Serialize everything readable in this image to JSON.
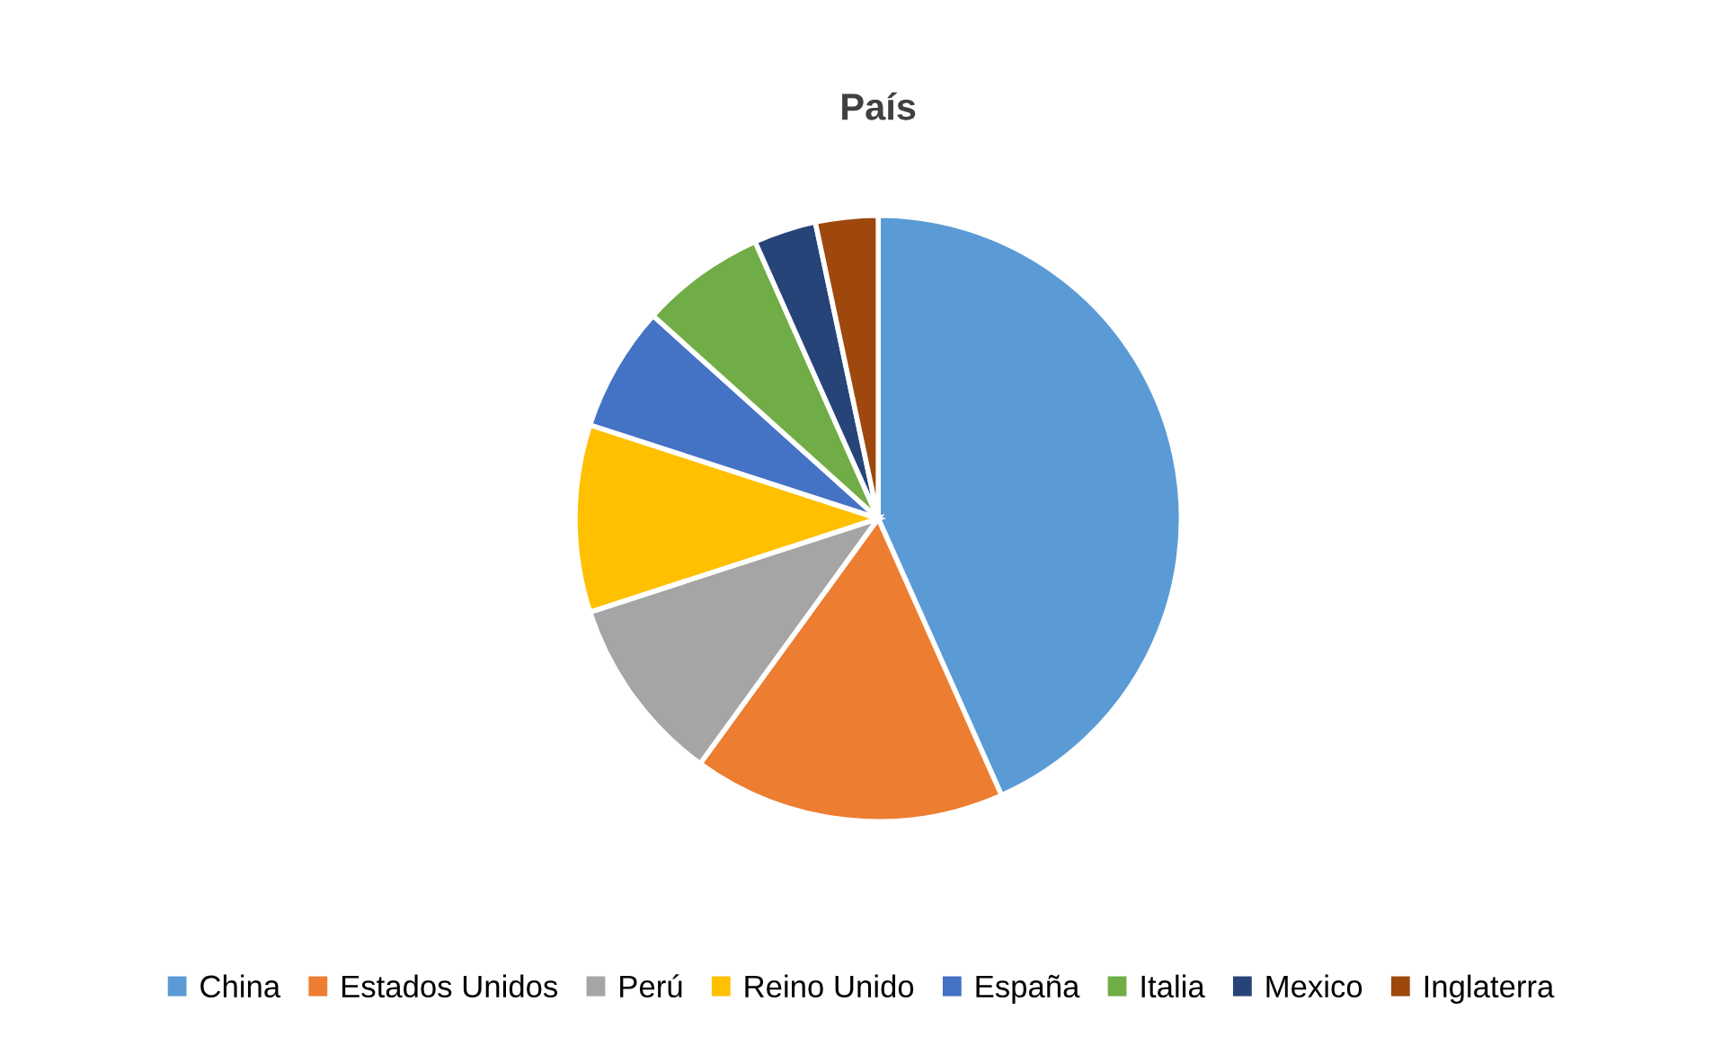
{
  "chart_data": {
    "type": "pie",
    "title": "País",
    "categories": [
      "China",
      "Estados Unidos",
      "Perú",
      "Reino Unido",
      "España",
      "Italia",
      "Mexico",
      "Inglaterra"
    ],
    "values": [
      43.33,
      16.67,
      10,
      10,
      6.67,
      6.67,
      3.33,
      3.33
    ],
    "colors": [
      "#5b9bd5",
      "#ed7d31",
      "#a5a5a5",
      "#ffc000",
      "#4472c4",
      "#70ad47",
      "#264478",
      "#9e480e"
    ],
    "legend": "bottom"
  }
}
